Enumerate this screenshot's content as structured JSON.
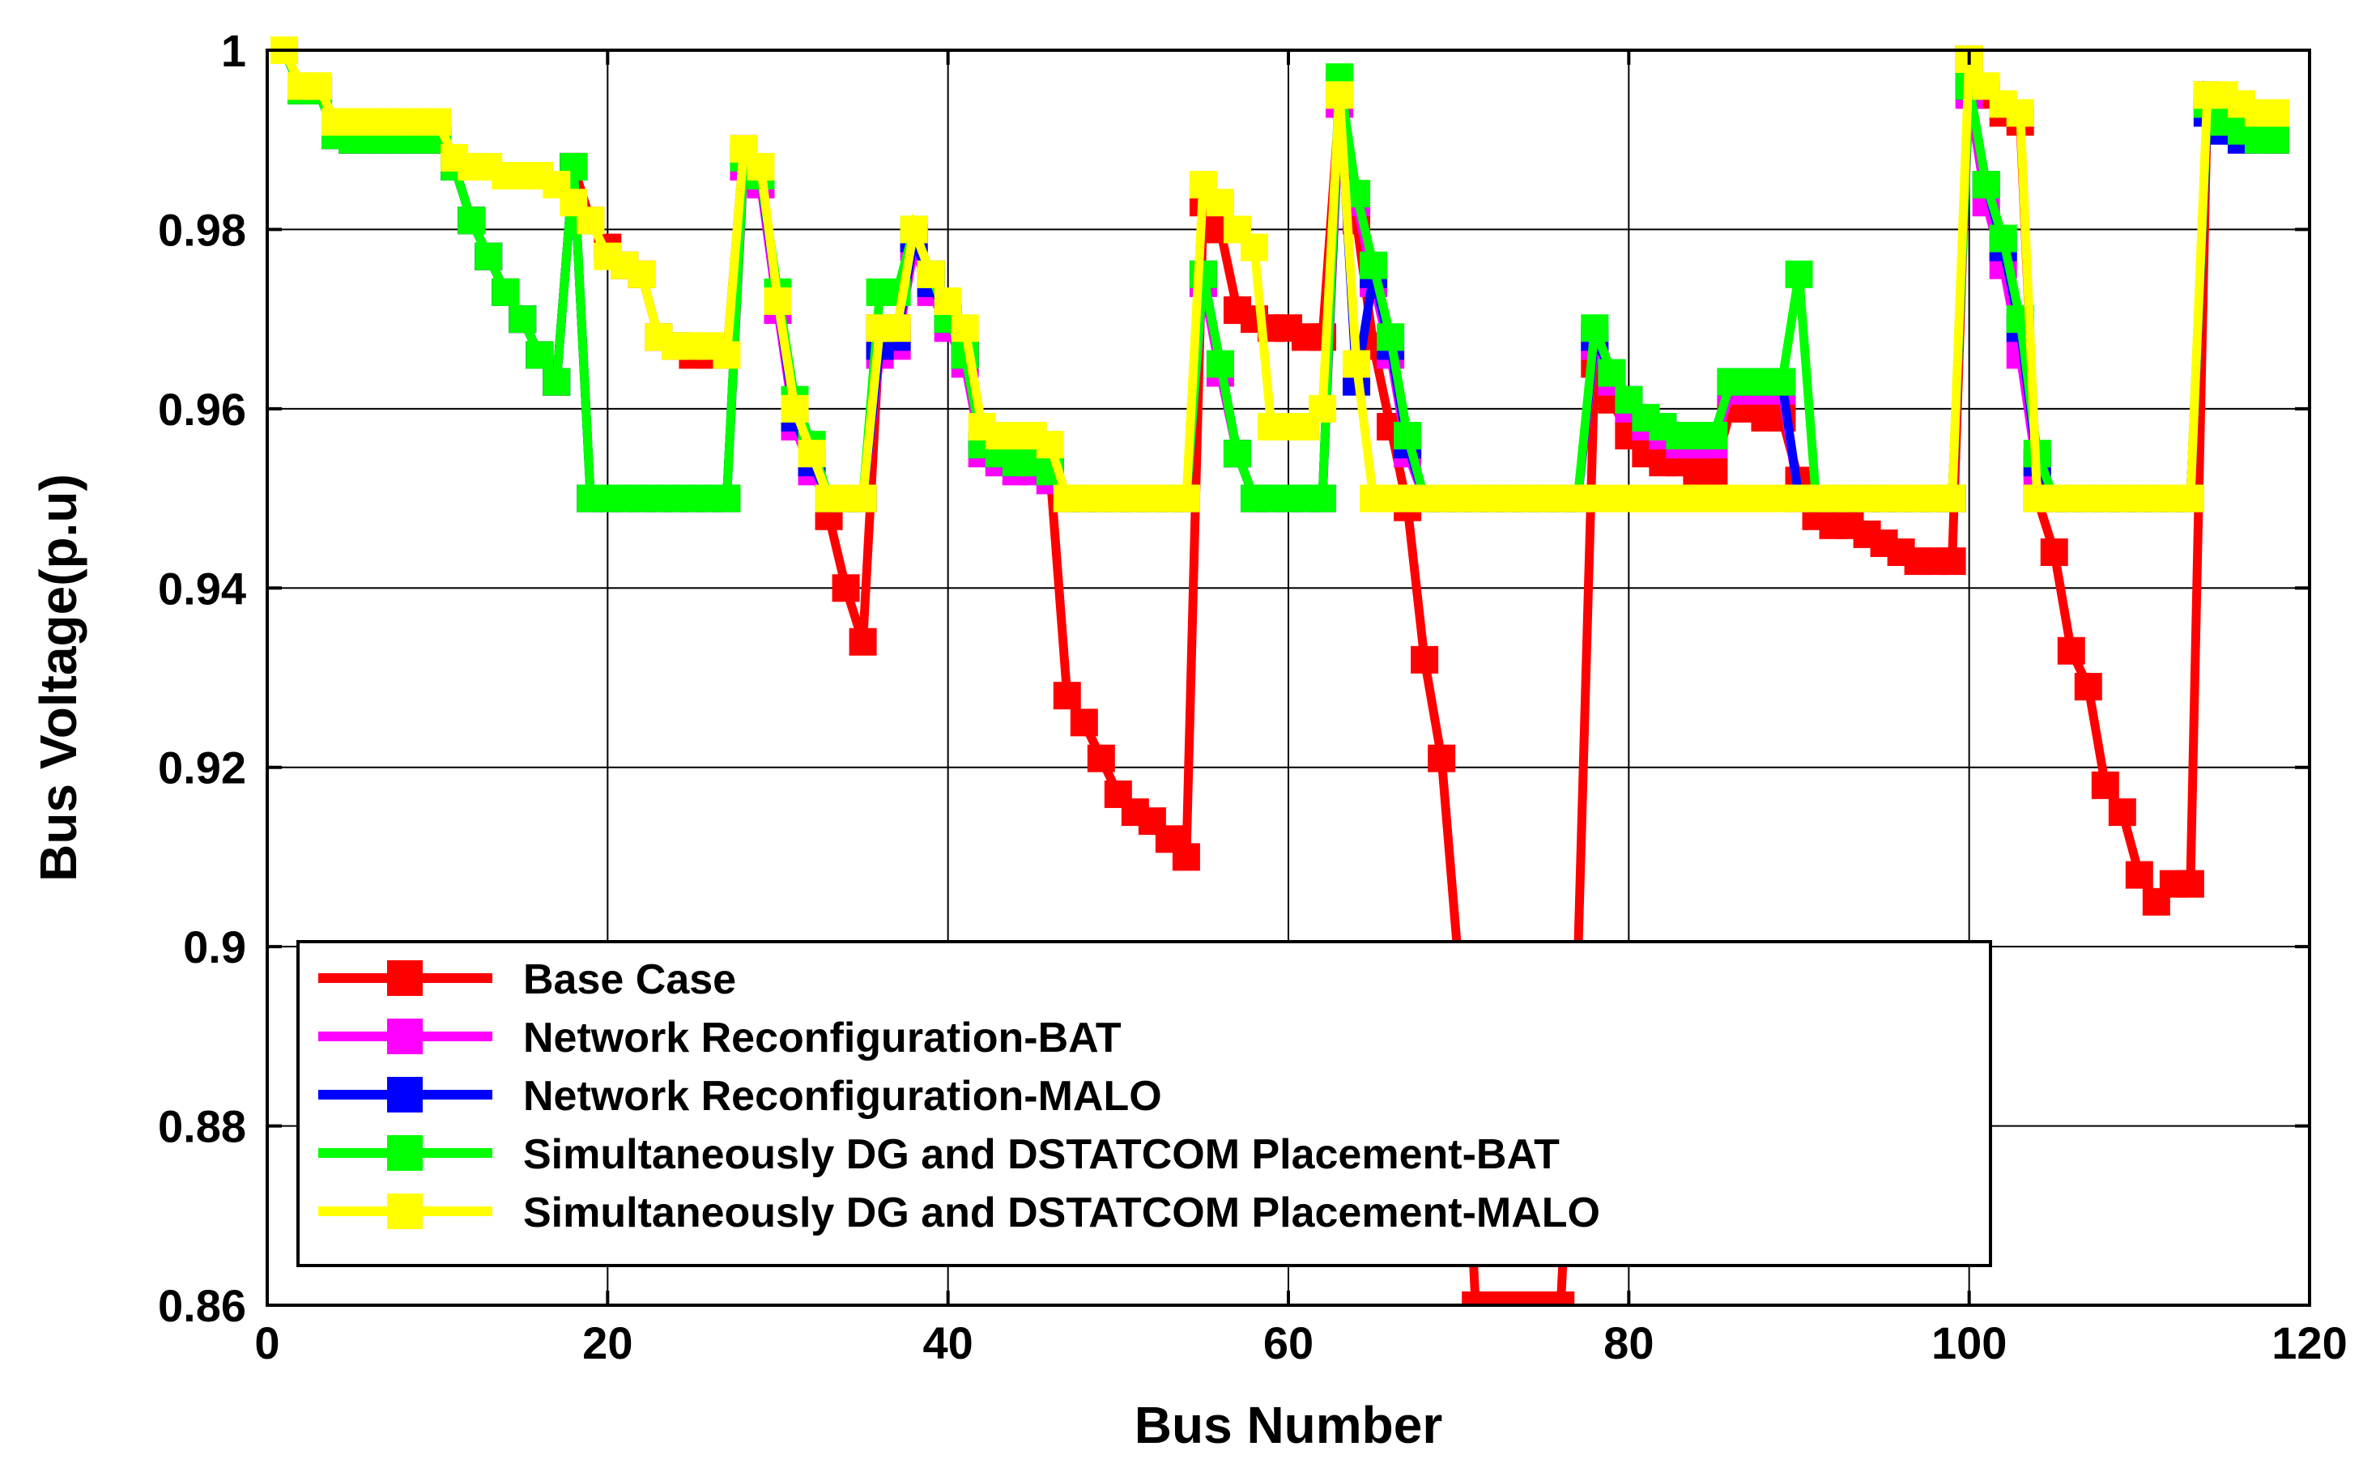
{
  "chart_data": {
    "type": "line",
    "title": "",
    "xlabel": "Bus Number",
    "ylabel": "Bus Voltage(p.u)",
    "xlim": [
      0,
      120
    ],
    "ylim": [
      0.86,
      1.0
    ],
    "xticks": [
      0,
      20,
      40,
      60,
      80,
      100,
      120
    ],
    "yticks": [
      0.86,
      0.88,
      0.9,
      0.92,
      0.94,
      0.96,
      0.98,
      1.0
    ],
    "xtick_labels": [
      "0",
      "20",
      "40",
      "60",
      "80",
      "100",
      "120"
    ],
    "ytick_labels": [
      "0.86",
      "0.88",
      "0.9",
      "0.92",
      "0.94",
      "0.96",
      "0.98",
      "1"
    ],
    "grid": true,
    "legend_position": "bottom-left",
    "x": [
      1,
      2,
      3,
      4,
      5,
      6,
      7,
      8,
      9,
      10,
      11,
      12,
      13,
      14,
      15,
      16,
      17,
      18,
      19,
      20,
      21,
      22,
      23,
      24,
      25,
      26,
      27,
      28,
      29,
      30,
      31,
      32,
      33,
      34,
      35,
      36,
      37,
      38,
      39,
      40,
      41,
      42,
      43,
      44,
      45,
      46,
      47,
      48,
      49,
      50,
      51,
      52,
      53,
      54,
      55,
      56,
      57,
      58,
      59,
      60,
      61,
      62,
      63,
      64,
      65,
      66,
      67,
      68,
      69,
      70,
      71,
      72,
      73,
      74,
      75,
      76,
      77,
      78,
      79,
      80,
      81,
      82,
      83,
      84,
      85,
      86,
      87,
      88,
      89,
      90,
      91,
      92,
      93,
      94,
      95,
      96,
      97,
      98,
      99,
      100,
      101,
      102,
      103,
      104,
      105,
      106,
      107,
      108,
      109,
      110,
      111,
      112,
      113,
      114,
      115,
      116,
      117,
      118
    ],
    "series": [
      {
        "name": "Base Case",
        "color": "#ff0000",
        "values": [
          1.0,
          0.9955,
          0.9955,
          0.9907,
          0.99,
          0.99,
          0.99,
          0.99,
          0.99,
          0.99,
          0.987,
          0.981,
          0.977,
          0.973,
          0.97,
          0.966,
          0.963,
          0.987,
          0.981,
          0.978,
          0.976,
          0.975,
          0.968,
          0.967,
          0.966,
          0.966,
          0.966,
          0.989,
          0.986,
          0.972,
          0.959,
          0.954,
          0.948,
          0.94,
          0.934,
          0.969,
          0.969,
          0.979,
          0.975,
          0.97,
          0.966,
          0.956,
          0.955,
          0.955,
          0.954,
          0.953,
          0.928,
          0.925,
          0.921,
          0.917,
          0.915,
          0.914,
          0.912,
          0.91,
          0.983,
          0.98,
          0.971,
          0.97,
          0.969,
          0.969,
          0.968,
          0.968,
          0.994,
          0.981,
          0.967,
          0.958,
          0.949,
          0.932,
          0.921,
          0.898,
          0.86,
          0.86,
          0.86,
          0.86,
          0.86,
          0.86,
          0.898,
          0.965,
          0.961,
          0.957,
          0.955,
          0.954,
          0.954,
          0.953,
          0.953,
          0.96,
          0.96,
          0.959,
          0.959,
          0.952,
          0.948,
          0.947,
          0.947,
          0.946,
          0.945,
          0.944,
          0.943,
          0.943,
          0.943,
          0.999,
          0.995,
          0.993,
          0.992,
          0.95,
          0.944,
          0.933,
          0.929,
          0.918,
          0.915,
          0.908,
          0.905,
          0.907,
          0.907,
          0.995,
          0.992,
          0.991,
          0.991,
          0.99
        ]
      },
      {
        "name": "Network Reconfiguration-BAT",
        "color": "#ff00ff",
        "values": [
          1.0,
          0.9955,
          0.9955,
          0.9905,
          0.99,
          0.99,
          0.99,
          0.99,
          0.99,
          0.99,
          0.987,
          0.981,
          0.977,
          0.973,
          0.97,
          0.966,
          0.963,
          0.987,
          0.95,
          0.95,
          0.95,
          0.95,
          0.95,
          0.95,
          0.95,
          0.95,
          0.95,
          0.987,
          0.985,
          0.971,
          0.958,
          0.953,
          0.95,
          0.95,
          0.95,
          0.966,
          0.967,
          0.978,
          0.973,
          0.969,
          0.965,
          0.955,
          0.954,
          0.953,
          0.953,
          0.952,
          0.95,
          0.95,
          0.95,
          0.95,
          0.95,
          0.95,
          0.95,
          0.95,
          0.974,
          0.964,
          0.955,
          0.95,
          0.95,
          0.95,
          0.95,
          0.95,
          0.994,
          0.983,
          0.974,
          0.966,
          0.955,
          0.95,
          0.95,
          0.95,
          0.95,
          0.95,
          0.95,
          0.95,
          0.95,
          0.95,
          0.95,
          0.967,
          0.963,
          0.96,
          0.958,
          0.957,
          0.956,
          0.956,
          0.956,
          0.962,
          0.962,
          0.962,
          0.962,
          0.95,
          0.95,
          0.95,
          0.95,
          0.95,
          0.95,
          0.95,
          0.95,
          0.95,
          0.95,
          0.995,
          0.983,
          0.976,
          0.966,
          0.953,
          0.95,
          0.95,
          0.95,
          0.95,
          0.95,
          0.95,
          0.95,
          0.95,
          0.95,
          0.993,
          0.991,
          0.99,
          0.99,
          0.99
        ]
      },
      {
        "name": "Network Reconfiguration-MALO",
        "color": "#0000ff",
        "values": [
          1.0,
          0.9955,
          0.9955,
          0.9905,
          0.99,
          0.99,
          0.99,
          0.99,
          0.99,
          0.99,
          0.987,
          0.981,
          0.977,
          0.973,
          0.97,
          0.966,
          0.963,
          0.987,
          0.95,
          0.95,
          0.95,
          0.95,
          0.95,
          0.95,
          0.95,
          0.95,
          0.95,
          0.988,
          0.986,
          0.972,
          0.959,
          0.954,
          0.95,
          0.95,
          0.95,
          0.967,
          0.968,
          0.979,
          0.974,
          0.97,
          0.966,
          0.956,
          0.955,
          0.954,
          0.954,
          0.953,
          0.95,
          0.95,
          0.95,
          0.95,
          0.95,
          0.95,
          0.95,
          0.95,
          0.975,
          0.965,
          0.955,
          0.95,
          0.95,
          0.95,
          0.95,
          0.95,
          0.996,
          0.963,
          0.975,
          0.967,
          0.956,
          0.95,
          0.95,
          0.95,
          0.95,
          0.95,
          0.95,
          0.95,
          0.95,
          0.95,
          0.95,
          0.968,
          0.964,
          0.961,
          0.959,
          0.958,
          0.957,
          0.957,
          0.957,
          0.963,
          0.963,
          0.963,
          0.963,
          0.95,
          0.95,
          0.95,
          0.95,
          0.95,
          0.95,
          0.95,
          0.95,
          0.95,
          0.95,
          0.996,
          0.985,
          0.978,
          0.969,
          0.954,
          0.95,
          0.95,
          0.95,
          0.95,
          0.95,
          0.95,
          0.95,
          0.95,
          0.95,
          0.993,
          0.991,
          0.99,
          0.99,
          0.99
        ]
      },
      {
        "name": "Simultaneously DG and DSTATCOM Placement-BAT",
        "color": "#00ff00",
        "values": [
          1.0,
          0.9955,
          0.9955,
          0.9905,
          0.99,
          0.99,
          0.99,
          0.99,
          0.99,
          0.99,
          0.987,
          0.981,
          0.977,
          0.973,
          0.97,
          0.966,
          0.963,
          0.987,
          0.95,
          0.95,
          0.95,
          0.95,
          0.95,
          0.95,
          0.95,
          0.95,
          0.95,
          0.988,
          0.986,
          0.973,
          0.961,
          0.956,
          0.95,
          0.95,
          0.95,
          0.973,
          0.973,
          0.98,
          0.975,
          0.97,
          0.966,
          0.956,
          0.955,
          0.954,
          0.954,
          0.953,
          0.95,
          0.95,
          0.95,
          0.95,
          0.95,
          0.95,
          0.95,
          0.95,
          0.975,
          0.965,
          0.955,
          0.95,
          0.95,
          0.95,
          0.95,
          0.95,
          0.997,
          0.984,
          0.976,
          0.968,
          0.957,
          0.95,
          0.95,
          0.95,
          0.95,
          0.95,
          0.95,
          0.95,
          0.95,
          0.95,
          0.95,
          0.969,
          0.964,
          0.961,
          0.959,
          0.958,
          0.957,
          0.957,
          0.957,
          0.963,
          0.963,
          0.963,
          0.963,
          0.975,
          0.95,
          0.95,
          0.95,
          0.95,
          0.95,
          0.95,
          0.95,
          0.95,
          0.95,
          0.996,
          0.985,
          0.979,
          0.97,
          0.955,
          0.95,
          0.95,
          0.95,
          0.95,
          0.95,
          0.95,
          0.95,
          0.95,
          0.95,
          0.994,
          0.992,
          0.991,
          0.99,
          0.99
        ]
      },
      {
        "name": "Simultaneously DG and DSTATCOM Placement-MALO",
        "color": "#ffff00",
        "values": [
          1.0,
          0.996,
          0.996,
          0.992,
          0.992,
          0.992,
          0.992,
          0.992,
          0.992,
          0.992,
          0.988,
          0.987,
          0.987,
          0.986,
          0.986,
          0.986,
          0.985,
          0.983,
          0.981,
          0.977,
          0.976,
          0.975,
          0.968,
          0.967,
          0.967,
          0.967,
          0.966,
          0.989,
          0.987,
          0.972,
          0.96,
          0.955,
          0.95,
          0.95,
          0.95,
          0.969,
          0.969,
          0.98,
          0.975,
          0.972,
          0.969,
          0.958,
          0.957,
          0.957,
          0.957,
          0.956,
          0.95,
          0.95,
          0.95,
          0.95,
          0.95,
          0.95,
          0.95,
          0.95,
          0.985,
          0.983,
          0.98,
          0.978,
          0.958,
          0.958,
          0.958,
          0.96,
          0.995,
          0.965,
          0.95,
          0.95,
          0.95,
          0.95,
          0.95,
          0.95,
          0.95,
          0.95,
          0.95,
          0.95,
          0.95,
          0.95,
          0.95,
          0.95,
          0.95,
          0.95,
          0.95,
          0.95,
          0.95,
          0.95,
          0.95,
          0.95,
          0.95,
          0.95,
          0.95,
          0.95,
          0.95,
          0.95,
          0.95,
          0.95,
          0.95,
          0.95,
          0.95,
          0.95,
          0.95,
          0.999,
          0.996,
          0.994,
          0.993,
          0.95,
          0.95,
          0.95,
          0.95,
          0.95,
          0.95,
          0.95,
          0.95,
          0.95,
          0.95,
          0.995,
          0.995,
          0.994,
          0.993,
          0.993
        ]
      }
    ]
  }
}
